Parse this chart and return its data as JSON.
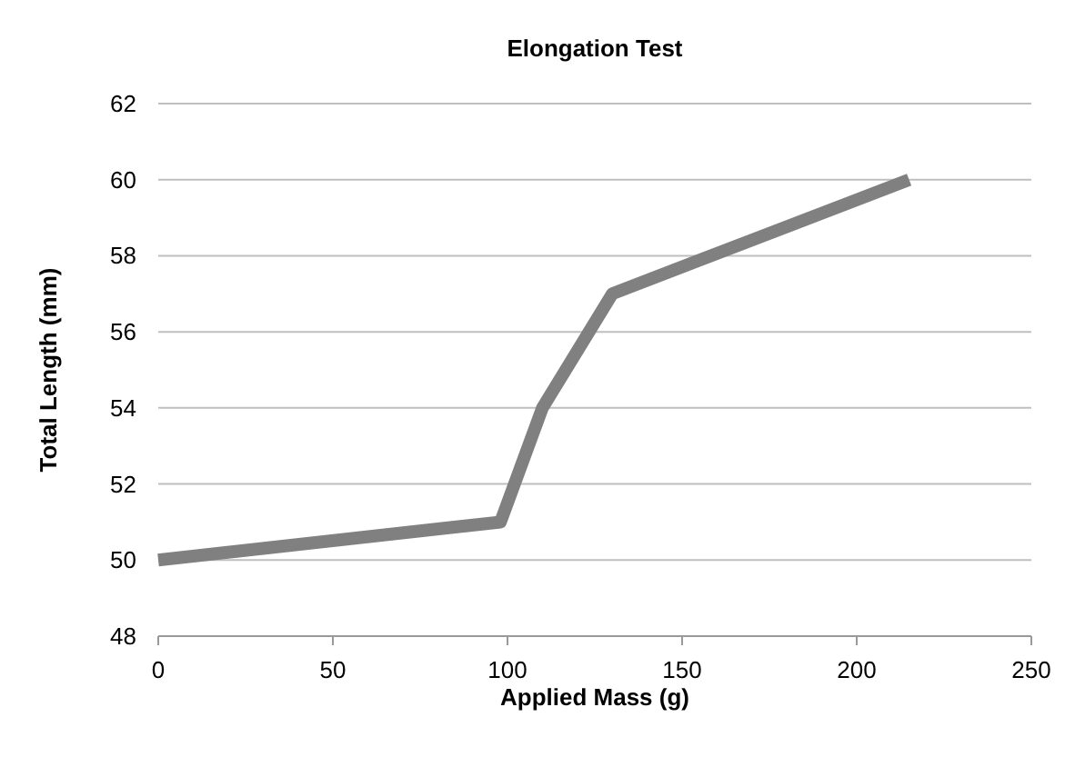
{
  "chart_data": {
    "type": "line",
    "title": "Elongation Test",
    "xlabel": "Applied Mass (g)",
    "ylabel": "Total Length (mm)",
    "series": [
      {
        "color": "#808080",
        "x": [
          0,
          98,
          110,
          130,
          215
        ],
        "values": [
          50,
          51,
          54,
          57,
          60
        ]
      }
    ],
    "xlim": [
      0,
      250
    ],
    "xticks": [
      0,
      50,
      100,
      150,
      200,
      250
    ],
    "ylim": [
      48,
      62
    ],
    "yticks": [
      48,
      50,
      52,
      54,
      56,
      58,
      60,
      62
    ],
    "grid": "y",
    "marker": "none",
    "line_style": "solid"
  }
}
